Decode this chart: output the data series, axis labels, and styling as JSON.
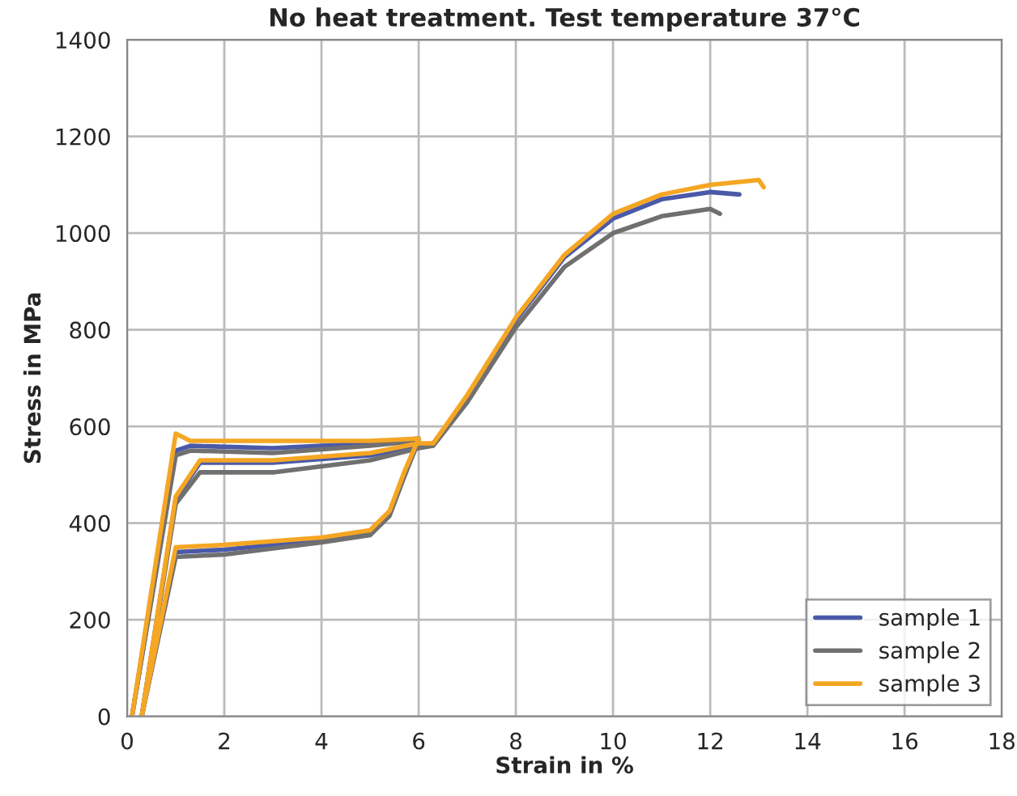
{
  "chart_data": {
    "type": "line",
    "title": "No heat treatment. Test temperature 37°C",
    "xlabel": "Strain in %",
    "ylabel": "Stress in MPa",
    "xlim": [
      0,
      18
    ],
    "xticks": [
      0,
      2,
      4,
      6,
      8,
      10,
      12,
      14,
      16,
      18
    ],
    "ylim": [
      0,
      1400
    ],
    "yticks": [
      0,
      200,
      400,
      600,
      800,
      1000,
      1200,
      1400
    ],
    "grid": true,
    "legend": "bottom right",
    "marker": "none",
    "line_style": "solid",
    "series": [
      {
        "name": "sample 1",
        "color": "#4a5aa8",
        "x": [
          0.1,
          1.0,
          1.3,
          3,
          5,
          6,
          5.7,
          5.4,
          5,
          4,
          2,
          1.0,
          0.3,
          1.0,
          1.5,
          3,
          5,
          6,
          6.3,
          7,
          8,
          9,
          10,
          11,
          12,
          12.6
        ],
        "values": [
          0,
          550,
          560,
          555,
          565,
          575,
          500,
          420,
          380,
          365,
          345,
          340,
          0,
          450,
          525,
          525,
          540,
          560,
          565,
          660,
          820,
          950,
          1030,
          1070,
          1085,
          1080
        ]
      },
      {
        "name": "sample 2",
        "color": "#707070",
        "x": [
          0.1,
          1.0,
          1.3,
          3,
          5,
          6,
          5.7,
          5.4,
          5,
          4,
          2,
          1.0,
          0.3,
          1.0,
          1.5,
          3,
          5,
          6,
          6.3,
          7,
          8,
          9,
          10,
          11,
          12,
          12.2
        ],
        "values": [
          0,
          540,
          550,
          545,
          560,
          570,
          495,
          415,
          375,
          360,
          335,
          330,
          0,
          440,
          505,
          505,
          530,
          555,
          560,
          650,
          805,
          930,
          1000,
          1035,
          1050,
          1040
        ]
      },
      {
        "name": "sample 3",
        "color": "#f5a623",
        "x": [
          0.1,
          1.0,
          1.3,
          3,
          5,
          6,
          5.7,
          5.4,
          5,
          4,
          2,
          1.0,
          0.3,
          1.0,
          1.5,
          3,
          5,
          6,
          6.3,
          7,
          8,
          9,
          10,
          11,
          12,
          13,
          13.1
        ],
        "values": [
          0,
          585,
          570,
          570,
          570,
          575,
          505,
          425,
          385,
          370,
          355,
          350,
          0,
          455,
          530,
          530,
          545,
          565,
          565,
          665,
          825,
          955,
          1040,
          1080,
          1100,
          1110,
          1095
        ]
      }
    ]
  }
}
